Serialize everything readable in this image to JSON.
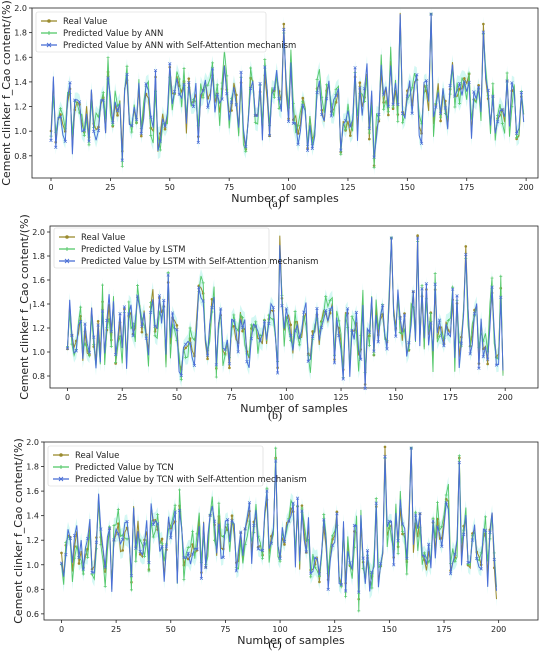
{
  "figure": {
    "captions": [
      "(a)",
      "(b)",
      "(c)"
    ],
    "colors": {
      "real": "#9b8b2e",
      "predicted": "#55c86a",
      "attention": "#4b6fd6",
      "band": "#aef3ea"
    }
  },
  "chart_data": [
    {
      "type": "line",
      "title": "",
      "xlabel": "Number of samples",
      "ylabel": "Cement clinker f_Cao content/(%)",
      "xlim": [
        -8,
        205
      ],
      "ylim": [
        0.62,
        2.0
      ],
      "xticks": [
        0,
        25,
        50,
        75,
        100,
        125,
        150,
        175,
        200
      ],
      "yticks": [
        0.8,
        1.0,
        1.2,
        1.4,
        1.6,
        1.8,
        2.0
      ],
      "legend_position": "top-left",
      "grid": false,
      "series": [
        {
          "name": "Real Value",
          "key": "real"
        },
        {
          "name": "Predicted Value by ANN",
          "key": "predicted"
        },
        {
          "name": "Predicted Value by ANN with Self-Attention mechanism",
          "key": "attention"
        }
      ]
    },
    {
      "type": "line",
      "title": "",
      "xlabel": "Number of samples",
      "ylabel": "Cement clinker f_Cao content/(%)",
      "xlim": [
        -8,
        215
      ],
      "ylim": [
        0.7,
        2.05
      ],
      "xticks": [
        0,
        25,
        50,
        75,
        100,
        125,
        150,
        175,
        200
      ],
      "yticks": [
        0.8,
        1.0,
        1.2,
        1.4,
        1.6,
        1.8,
        2.0
      ],
      "legend_position": "top-left",
      "grid": false,
      "series": [
        {
          "name": "Real Value",
          "key": "real"
        },
        {
          "name": "Predicted Value by LSTM",
          "key": "predicted"
        },
        {
          "name": "Predicted Value by LSTM with Self-Attention mechanism",
          "key": "attention"
        }
      ]
    },
    {
      "type": "line",
      "title": "",
      "xlabel": "Number of samples",
      "ylabel": "Cement clinker f_Cao content/(%)",
      "xlim": [
        -8,
        218
      ],
      "ylim": [
        0.55,
        2.0
      ],
      "xticks": [
        0,
        25,
        50,
        75,
        100,
        125,
        150,
        175,
        200
      ],
      "yticks": [
        0.6,
        0.8,
        1.0,
        1.2,
        1.4,
        1.6,
        1.8,
        2.0
      ],
      "legend_position": "top-left",
      "grid": false,
      "series": [
        {
          "name": "Real Value",
          "key": "real"
        },
        {
          "name": "Predicted Value by TCN",
          "key": "predicted"
        },
        {
          "name": "Predicted Value by TCN with Self-Attention mechanism",
          "key": "attention"
        }
      ]
    }
  ]
}
